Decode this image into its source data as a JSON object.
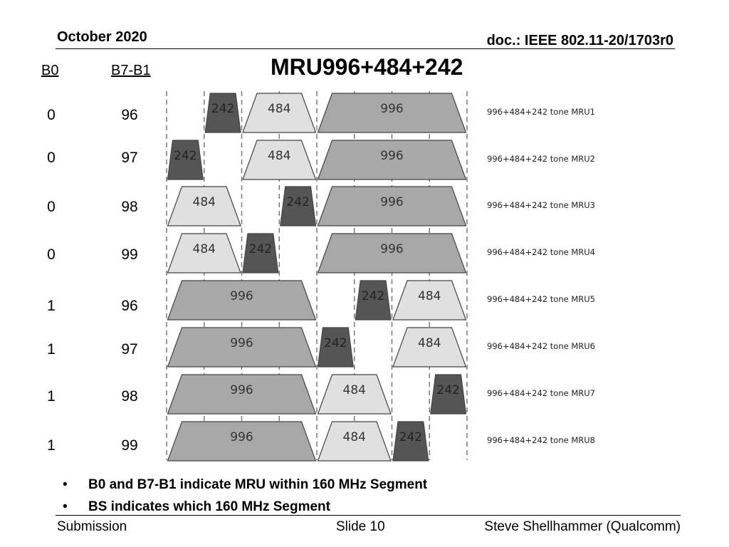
{
  "header": {
    "date": "October 2020",
    "doc_id": "doc.: IEEE 802.11-20/1703r0"
  },
  "title": "MRU996+484+242",
  "columns": {
    "b0": "B0",
    "b7b1": "B7-B1"
  },
  "colors": {
    "ru242": "#555555",
    "ru484": "#e0e0e0",
    "ru996": "#a8a8a8",
    "dash": "#707070"
  },
  "rows": [
    {
      "b0": "0",
      "b7b1": "96",
      "label": "996+484+242 tone MRU1",
      "rus": [
        {
          "type": "242",
          "slot": 1,
          "width": 1
        },
        {
          "type": "484",
          "slot": 2,
          "width": 2
        },
        {
          "type": "996",
          "slot": 4,
          "width": 4
        }
      ]
    },
    {
      "b0": "0",
      "b7b1": "97",
      "label": "996+484+242 tone MRU2",
      "rus": [
        {
          "type": "242",
          "slot": 0,
          "width": 1
        },
        {
          "type": "484",
          "slot": 2,
          "width": 2
        },
        {
          "type": "996",
          "slot": 4,
          "width": 4
        }
      ]
    },
    {
      "b0": "0",
      "b7b1": "98",
      "label": "996+484+242 tone MRU3",
      "rus": [
        {
          "type": "484",
          "slot": 0,
          "width": 2
        },
        {
          "type": "242",
          "slot": 3,
          "width": 1
        },
        {
          "type": "996",
          "slot": 4,
          "width": 4
        }
      ]
    },
    {
      "b0": "0",
      "b7b1": "99",
      "label": "996+484+242 tone MRU4",
      "rus": [
        {
          "type": "484",
          "slot": 0,
          "width": 2
        },
        {
          "type": "242",
          "slot": 2,
          "width": 1
        },
        {
          "type": "996",
          "slot": 4,
          "width": 4
        }
      ]
    },
    {
      "b0": "1",
      "b7b1": "96",
      "label": "996+484+242 tone MRU5",
      "rus": [
        {
          "type": "996",
          "slot": 0,
          "width": 4
        },
        {
          "type": "242",
          "slot": 5,
          "width": 1
        },
        {
          "type": "484",
          "slot": 6,
          "width": 2
        }
      ]
    },
    {
      "b0": "1",
      "b7b1": "97",
      "label": "996+484+242 tone MRU6",
      "rus": [
        {
          "type": "996",
          "slot": 0,
          "width": 4
        },
        {
          "type": "242",
          "slot": 4,
          "width": 1
        },
        {
          "type": "484",
          "slot": 6,
          "width": 2
        }
      ]
    },
    {
      "b0": "1",
      "b7b1": "98",
      "label": "996+484+242 tone MRU7",
      "rus": [
        {
          "type": "996",
          "slot": 0,
          "width": 4
        },
        {
          "type": "484",
          "slot": 4,
          "width": 2
        },
        {
          "type": "242",
          "slot": 7,
          "width": 1
        }
      ]
    },
    {
      "b0": "1",
      "b7b1": "99",
      "label": "996+484+242 tone MRU8",
      "rus": [
        {
          "type": "996",
          "slot": 0,
          "width": 4
        },
        {
          "type": "484",
          "slot": 4,
          "width": 2
        },
        {
          "type": "242",
          "slot": 6,
          "width": 1
        }
      ]
    }
  ],
  "bullets": [
    "B0 and B7-B1 indicate MRU within 160 MHz Segment",
    "BS indicates which 160 MHz Segment"
  ],
  "footer": {
    "left": "Submission",
    "center": "Slide 10",
    "right": "Steve Shellhammer (Qualcomm)"
  }
}
